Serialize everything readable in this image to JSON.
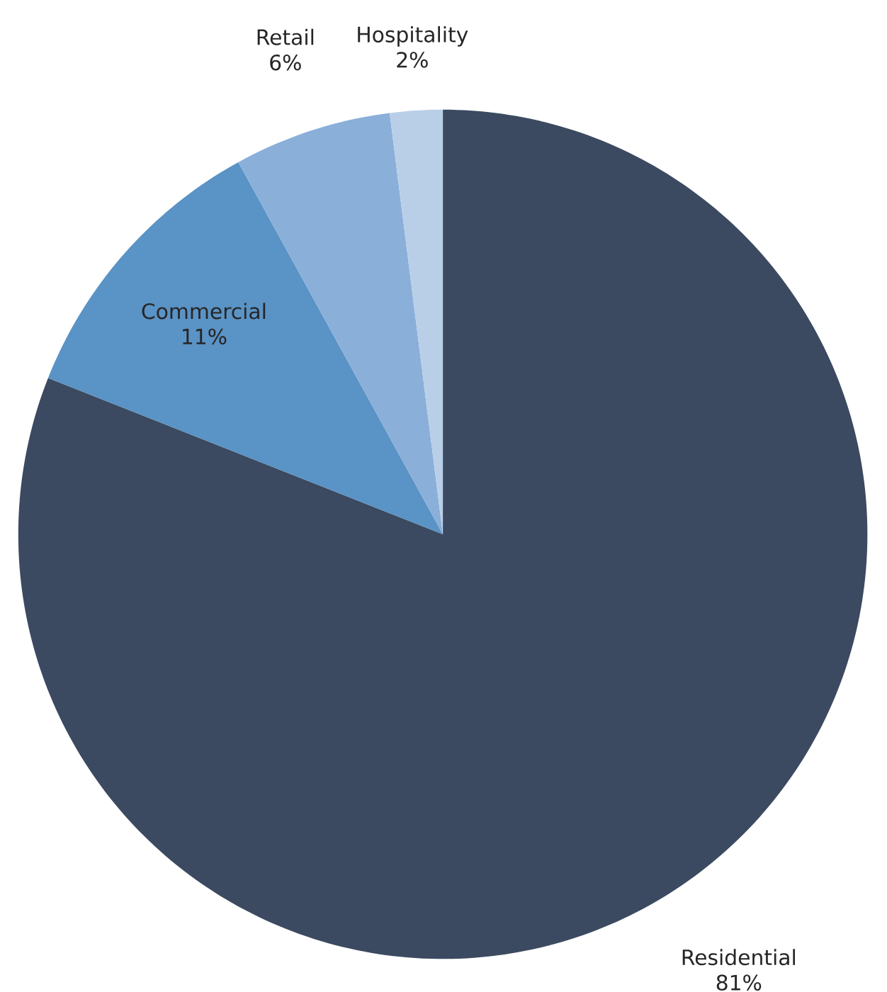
{
  "chart_data": {
    "type": "pie",
    "categories": [
      "Residential",
      "Commercial",
      "Retail",
      "Hospitality"
    ],
    "values": [
      81,
      11,
      6,
      2
    ],
    "colors": [
      "#3b4a60",
      "#5a93c5",
      "#8aafd9",
      "#b9cfe8"
    ],
    "value_labels": [
      "81%",
      "11%",
      "6%",
      "2%"
    ]
  }
}
